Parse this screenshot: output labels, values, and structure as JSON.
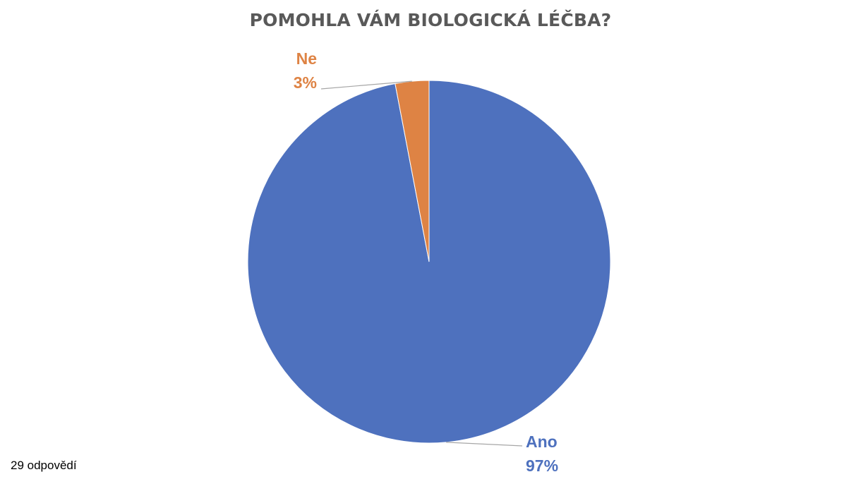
{
  "chart_data": {
    "type": "pie",
    "title": "POMOHLA VÁM BIOLOGICKÁ LÉČBA?",
    "categories": [
      "Ano",
      "Ne"
    ],
    "values": [
      97,
      3
    ],
    "value_labels": [
      "97%",
      "3%"
    ],
    "colors": [
      "#4E71BE",
      "#DE8344"
    ],
    "start_angle_deg": 0,
    "direction": "clockwise",
    "legend": "none"
  },
  "footer": {
    "responses": "29 odpovědí"
  }
}
